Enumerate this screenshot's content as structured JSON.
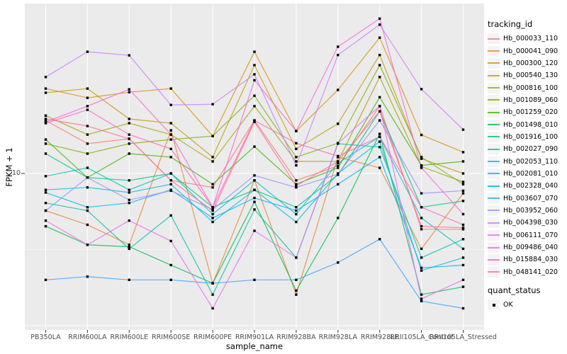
{
  "figure": {
    "y_axis_title": "FPKM + 1",
    "x_axis_title": "sample_name",
    "legend_title": "tracking_id",
    "quant_legend_title": "quant_status",
    "quant_status_value": "OK"
  },
  "colors": {
    "panel_bg": "#EBEBEB",
    "grid_line": "#FFFFFF",
    "axis_text": "#4D4D4D",
    "tick_mark": "#333333",
    "point": "#000000",
    "legend_key_bg": "#F4F4F4"
  },
  "chart_data": {
    "type": "line",
    "title": "",
    "xlabel": "sample_name",
    "ylabel": "FPKM + 1",
    "y_scale": "log10",
    "ylim": [
      0.94,
      130
    ],
    "y_major_breaks": [
      1,
      10
    ],
    "y_labeled_breaks": [
      10
    ],
    "y_minor_breaks": [
      3.162
    ],
    "grid": true,
    "legend_position": "right",
    "point_shape": "filled-square",
    "categories": [
      "PB350LA",
      "RRIM600LA",
      "RRIM600LE",
      "RRIM600SE",
      "RRIM600PE",
      "RRIM901LA",
      "RRIM928BA",
      "RRIM928LA",
      "RRIM928LE",
      "RRII105LA_Control",
      "RRII105LA_Stressed"
    ],
    "series": [
      {
        "name": "Hb_000033_110",
        "color": "#F8766D",
        "quant_status": "OK",
        "values": [
          22.3,
          15.7,
          16.9,
          9.0,
          8.1,
          22.3,
          9.0,
          11.2,
          27.7,
          4.3,
          4.3
        ]
      },
      {
        "name": "Hb_000041_090",
        "color": "#EA8331",
        "quant_status": "OK",
        "values": [
          5.7,
          4.6,
          3.4,
          19.2,
          1.9,
          9.0,
          1.6,
          12.8,
          10.9,
          3.2,
          7.4
        ]
      },
      {
        "name": "Hb_000300_120",
        "color": "#D89000",
        "quant_status": "OK",
        "values": [
          36.1,
          31.4,
          34.2,
          36.1,
          17.6,
          63.0,
          19.0,
          35.4,
          78.0,
          17.9,
          13.8
        ]
      },
      {
        "name": "Hb_000540_130",
        "color": "#C09B00",
        "quant_status": "OK",
        "values": [
          33.9,
          36.1,
          22.8,
          21.4,
          12.8,
          51.5,
          14.5,
          21.2,
          60.0,
          12.5,
          10.0
        ]
      },
      {
        "name": "Hb_000816_100",
        "color": "#A3A500",
        "quant_status": "OK",
        "values": [
          24.0,
          18.0,
          21.4,
          18.0,
          12.0,
          27.7,
          12.0,
          12.0,
          43.0,
          11.1,
          8.8
        ]
      },
      {
        "name": "Hb_001089_060",
        "color": "#7CAE00",
        "quant_status": "OK",
        "values": [
          15.7,
          13.5,
          15.7,
          16.7,
          17.6,
          32.4,
          12.8,
          15.8,
          51.5,
          12.8,
          8.5
        ]
      },
      {
        "name": "Hb_001259_020",
        "color": "#39B600",
        "quant_status": "OK",
        "values": [
          16.7,
          9.4,
          13.5,
          12.8,
          8.5,
          15.0,
          8.5,
          10.9,
          31.7,
          11.3,
          12.0
        ]
      },
      {
        "name": "Hb_001498_010",
        "color": "#00BB4E",
        "quant_status": "OK",
        "values": [
          4.5,
          3.4,
          3.3,
          2.5,
          1.9,
          6.5,
          1.7,
          5.1,
          18.2,
          1.6,
          1.8
        ]
      },
      {
        "name": "Hb_001916_100",
        "color": "#00BF7D",
        "quant_status": "OK",
        "values": [
          13.5,
          9.4,
          9.0,
          10.0,
          6.0,
          7.8,
          6.0,
          9.8,
          25.6,
          6.0,
          6.6
        ]
      },
      {
        "name": "Hb_002027_090",
        "color": "#00C1A3",
        "quant_status": "OK",
        "values": [
          6.4,
          5.7,
          3.2,
          5.3,
          1.6,
          5.8,
          2.8,
          15.7,
          14.9,
          2.8,
          3.7
        ]
      },
      {
        "name": "Hb_002053_110",
        "color": "#00BFC4",
        "quant_status": "OK",
        "values": [
          9.6,
          10.9,
          7.8,
          10.0,
          5.4,
          9.0,
          5.4,
          11.7,
          17.4,
          5.1,
          3.2
        ]
      },
      {
        "name": "Hb_002081_010",
        "color": "#00BAE0",
        "quant_status": "OK",
        "values": [
          7.8,
          8.1,
          7.5,
          8.5,
          4.8,
          7.8,
          4.8,
          10.0,
          16.2,
          2.3,
          2.8
        ]
      },
      {
        "name": "Hb_002328_040",
        "color": "#00B0F6",
        "quant_status": "OK",
        "values": [
          7.5,
          6.0,
          6.4,
          7.8,
          5.1,
          6.9,
          5.7,
          8.5,
          12.8,
          2.4,
          2.5
        ]
      },
      {
        "name": "Hb_003607_070",
        "color": "#35A2FF",
        "quant_status": "OK",
        "values": [
          2.0,
          2.1,
          2.0,
          2.0,
          1.9,
          2.0,
          2.0,
          2.6,
          3.7,
          1.45,
          1.3
        ]
      },
      {
        "name": "Hb_003952_060",
        "color": "#9590FF",
        "quant_status": "OK",
        "values": [
          5.7,
          9.4,
          6.7,
          7.7,
          5.8,
          9.7,
          8.1,
          9.9,
          22.3,
          7.4,
          7.7
        ]
      },
      {
        "name": "Hb_004398_030",
        "color": "#C77CFF",
        "quant_status": "OK",
        "values": [
          43.0,
          63.0,
          59.7,
          28.2,
          28.5,
          44.8,
          11.3,
          60.0,
          95.0,
          35.8,
          19.4
        ]
      },
      {
        "name": "Hb_006111_070",
        "color": "#E76BF3",
        "quant_status": "OK",
        "values": [
          4.9,
          3.4,
          4.9,
          3.6,
          1.3,
          4.2,
          2.8,
          15.8,
          27.7,
          1.5,
          2.0
        ]
      },
      {
        "name": "Hb_009486_040",
        "color": "#FA62DB",
        "quant_status": "OK",
        "values": [
          21.8,
          27.7,
          35.7,
          18.0,
          6.0,
          41.0,
          19.0,
          68.0,
          104.0,
          10.9,
          5.4
        ]
      },
      {
        "name": "Hb_015884_030",
        "color": "#FF62BC",
        "quant_status": "OK",
        "values": [
          21.4,
          26.2,
          18.0,
          14.5,
          6.0,
          22.3,
          15.8,
          13.0,
          17.4,
          6.0,
          4.6
        ]
      },
      {
        "name": "Hb_048141_020",
        "color": "#FF6A98",
        "quant_status": "OK",
        "values": [
          22.8,
          20.5,
          16.9,
          9.0,
          5.7,
          21.8,
          8.3,
          12.0,
          25.6,
          4.5,
          4.4
        ]
      }
    ]
  }
}
